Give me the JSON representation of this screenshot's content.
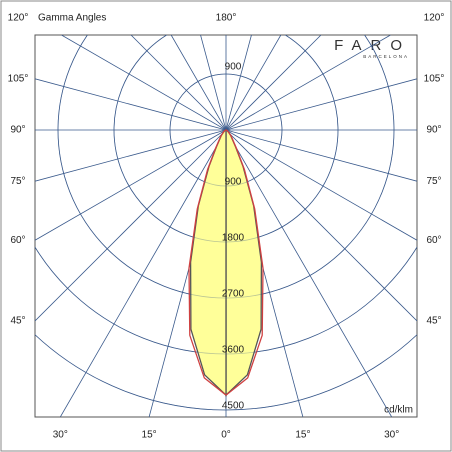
{
  "chart_data": {
    "type": "polar",
    "title": "Gamma Angles",
    "unit": "cd/klm",
    "logo": {
      "name": "FARO",
      "sub": "BARCELONA"
    },
    "rlim": [
      0,
      4500
    ],
    "rticks": [
      900,
      1800,
      2700,
      3600,
      4500
    ],
    "angle_grid": 15,
    "angle_ticks": {
      "center": [
        {
          "value": 180,
          "label": "180°"
        },
        {
          "value": 0,
          "label": "0°"
        }
      ],
      "left": [
        {
          "value": 120,
          "label": "120°"
        },
        {
          "value": 105,
          "label": "105°"
        },
        {
          "value": 90,
          "label": "90°"
        },
        {
          "value": 75,
          "label": "75°"
        },
        {
          "value": 60,
          "label": "60°"
        },
        {
          "value": 45,
          "label": "45°"
        },
        {
          "value": 30,
          "label": "30°"
        },
        {
          "value": 15,
          "label": "15°"
        }
      ],
      "right": [
        {
          "value": 120,
          "label": "120°"
        },
        {
          "value": 105,
          "label": "105°"
        },
        {
          "value": 90,
          "label": "90°"
        },
        {
          "value": 75,
          "label": "75°"
        },
        {
          "value": 60,
          "label": "60°"
        },
        {
          "value": 45,
          "label": "45°"
        },
        {
          "value": 30,
          "label": "30°"
        },
        {
          "value": 15,
          "label": "15°"
        }
      ]
    },
    "x": [
      0,
      5,
      10,
      15,
      20,
      25,
      30,
      40,
      50,
      60,
      70,
      80,
      90
    ],
    "series": [
      {
        "color": "#ffff99",
        "stroke": "#555555",
        "values": [
          4260,
          3950,
          3250,
          2200,
          1300,
          650,
          300,
          120,
          50,
          20,
          10,
          5,
          0
        ]
      },
      {
        "color": "#d04040",
        "values": [
          4260,
          4000,
          3350,
          2300,
          1350,
          700,
          320,
          130,
          55,
          22,
          10,
          5,
          0
        ]
      }
    ]
  }
}
